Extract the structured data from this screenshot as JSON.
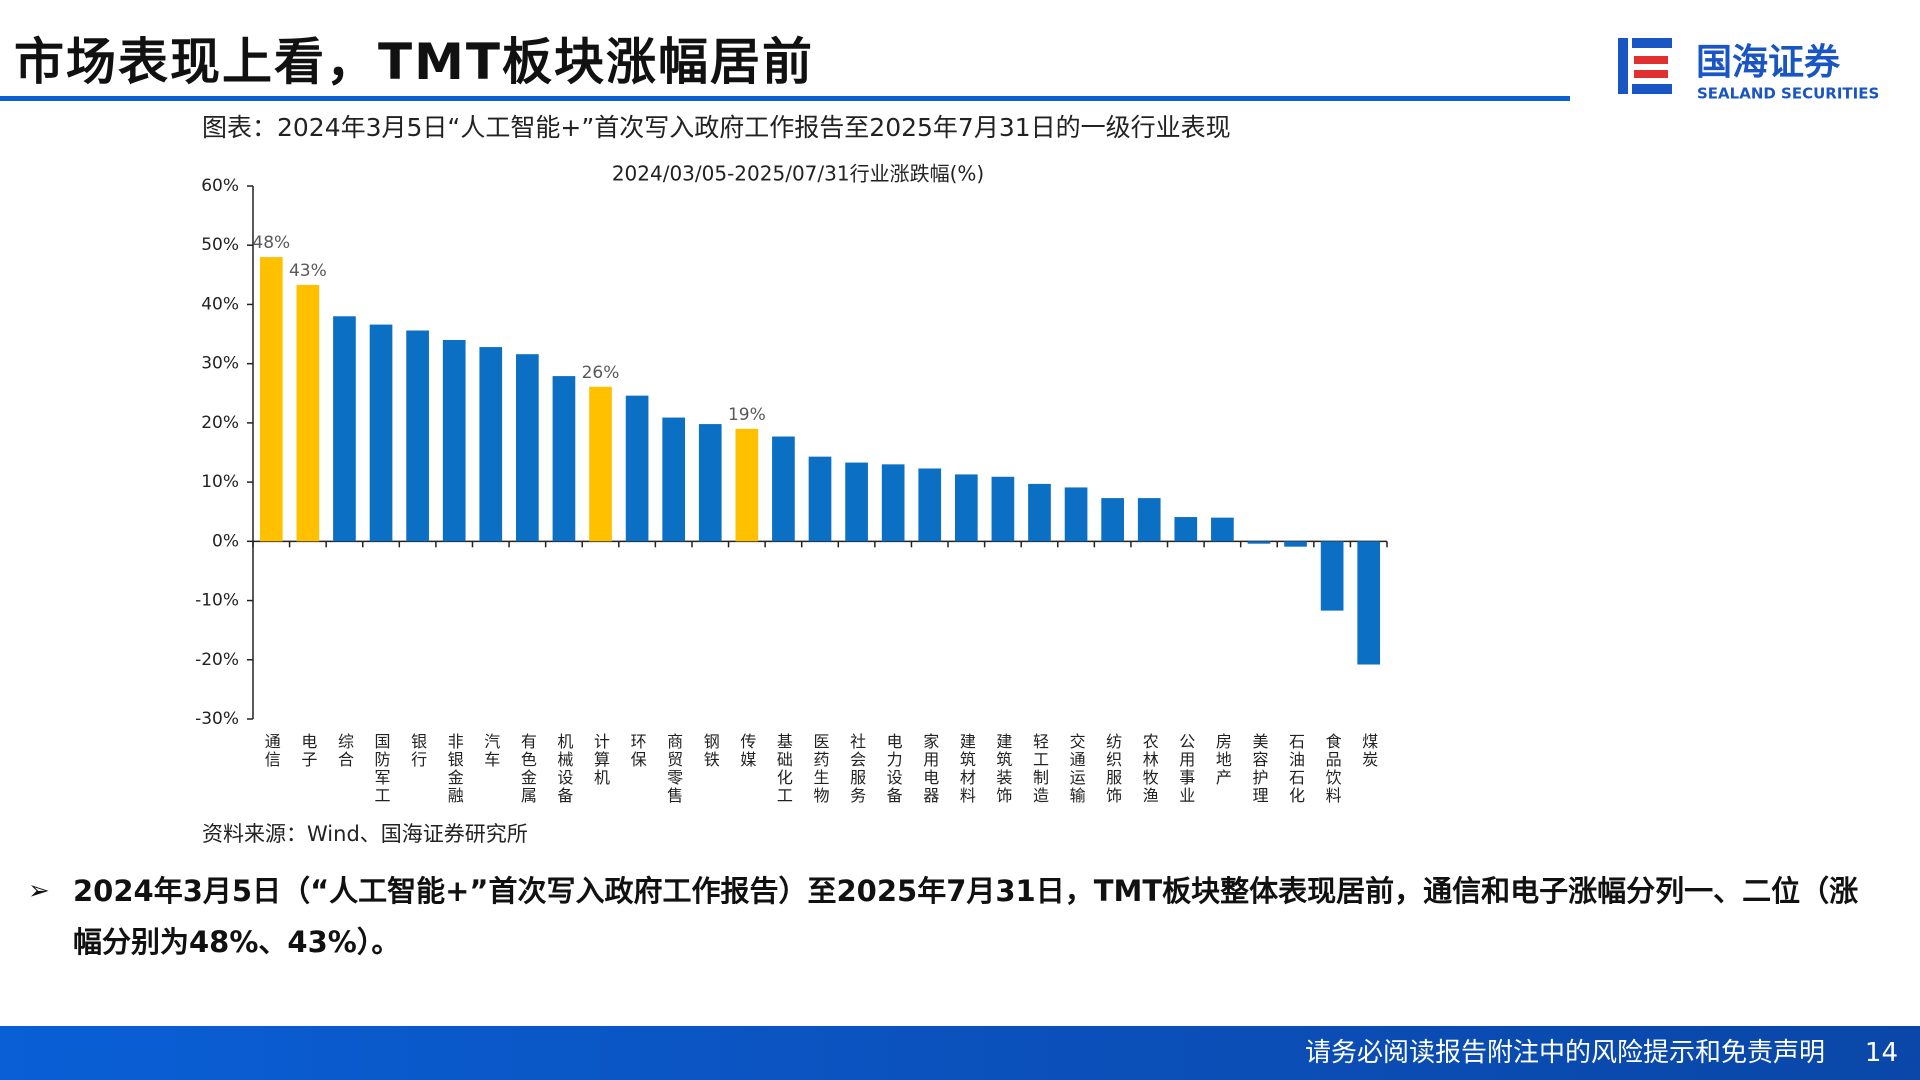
{
  "header": {
    "title": "市场表现上看，TMT板块涨幅居前",
    "logo_name": "国海证券",
    "logo_subtitle": "SEALAND SECURITIES"
  },
  "chart_caption": "图表：2024年3月5日“人工智能+”首次写入政府工作报告至2025年7月31日的一级行业表现",
  "chart_data": {
    "type": "bar",
    "title": "2024/03/05-2025/07/31行业涨跌幅(%)",
    "categories": [
      "通信",
      "电子",
      "综合",
      "国防军工",
      "银行",
      "非银金融",
      "汽车",
      "有色金属",
      "机械设备",
      "计算机",
      "环保",
      "商贸零售",
      "钢铁",
      "传媒",
      "基础化工",
      "医药生物",
      "社会服务",
      "电力设备",
      "家用电器",
      "建筑材料",
      "建筑装饰",
      "轻工制造",
      "交通运输",
      "纺织服饰",
      "农林牧渔",
      "公用事业",
      "房地产",
      "美容护理",
      "石油石化",
      "食品饮料",
      "煤炭"
    ],
    "values": [
      48,
      43.3,
      38,
      36.6,
      35.6,
      34,
      32.8,
      31.6,
      27.9,
      26.1,
      24.6,
      20.9,
      19.8,
      19,
      17.7,
      14.3,
      13.3,
      13,
      12.3,
      11.3,
      10.9,
      9.7,
      9.1,
      7.3,
      7.3,
      4.1,
      4.0,
      -0.4,
      -0.9,
      -11.7,
      -20.8
    ],
    "value_labels": [
      "48%",
      "43%",
      null,
      null,
      null,
      null,
      null,
      null,
      null,
      "26%",
      null,
      null,
      null,
      "19%",
      null,
      null,
      null,
      null,
      null,
      null,
      null,
      null,
      null,
      null,
      null,
      null,
      null,
      null,
      null,
      null,
      null
    ],
    "colors": [
      "#FFC000",
      "#FFC000",
      "#0B6FC4",
      "#0B6FC4",
      "#0B6FC4",
      "#0B6FC4",
      "#0B6FC4",
      "#0B6FC4",
      "#0B6FC4",
      "#FFC000",
      "#0B6FC4",
      "#0B6FC4",
      "#0B6FC4",
      "#FFC000",
      "#0B6FC4",
      "#0B6FC4",
      "#0B6FC4",
      "#0B6FC4",
      "#0B6FC4",
      "#0B6FC4",
      "#0B6FC4",
      "#0B6FC4",
      "#0B6FC4",
      "#0B6FC4",
      "#0B6FC4",
      "#0B6FC4",
      "#0B6FC4",
      "#0B6FC4",
      "#0B6FC4",
      "#0B6FC4",
      "#0B6FC4"
    ],
    "ylim": [
      -30,
      60
    ],
    "yticks": [
      {
        "value": -30,
        "label": "-30%"
      },
      {
        "value": -20,
        "label": "-20%"
      },
      {
        "value": -10,
        "label": "-10%"
      },
      {
        "value": 0,
        "label": "0%"
      },
      {
        "value": 10,
        "label": "10%"
      },
      {
        "value": 20,
        "label": "20%"
      },
      {
        "value": 30,
        "label": "30%"
      },
      {
        "value": 40,
        "label": "40%"
      },
      {
        "value": 50,
        "label": "50%"
      },
      {
        "value": 60,
        "label": "60%"
      }
    ],
    "grid": false
  },
  "source": "资料来源：Wind、国海证券研究所",
  "bullet": "2024年3月5日（“人工智能+”首次写入政府工作报告）至2025年7月31日，TMT板块整体表现居前，通信和电子涨幅分列一、二位（涨幅分别为48%、43%）。",
  "footer": {
    "disclaimer": "请务必阅读报告附注中的风险提示和免责声明",
    "page": "14"
  }
}
